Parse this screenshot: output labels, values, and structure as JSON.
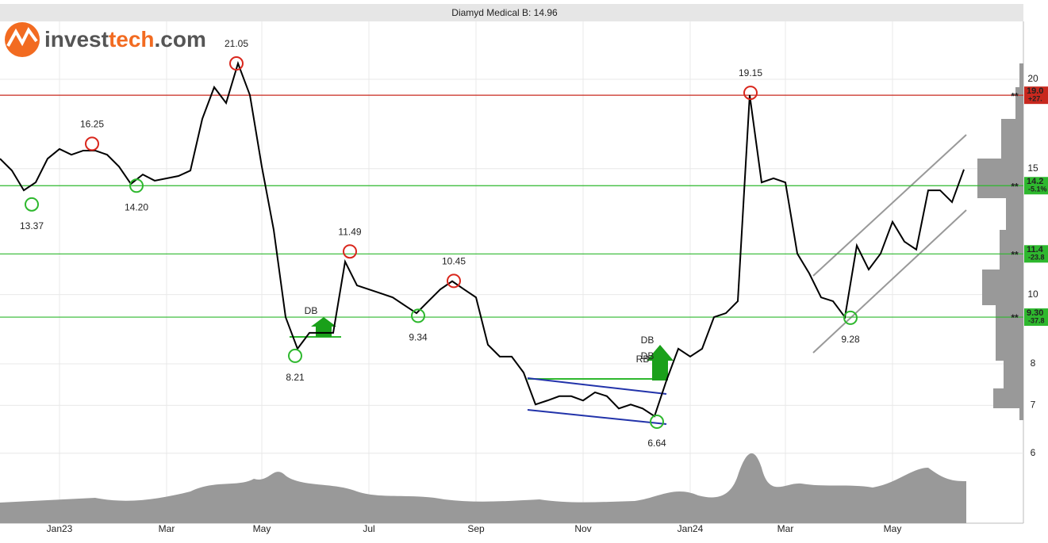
{
  "chart_data": {
    "type": "line",
    "title": "Diamyd Medical B: 14.96",
    "log_scale": true,
    "grid": true,
    "ylim": [
      4.79,
      24.1
    ],
    "yticks": [
      6,
      7,
      8,
      10,
      15,
      20
    ],
    "categories": [
      null,
      null,
      null,
      null,
      null,
      "Jan23",
      null,
      null,
      null,
      null,
      null,
      null,
      null,
      null,
      "Mar",
      null,
      null,
      null,
      null,
      null,
      null,
      null,
      "May",
      null,
      null,
      null,
      null,
      null,
      null,
      null,
      null,
      "Jul",
      null,
      null,
      null,
      null,
      null,
      null,
      null,
      null,
      "Sep",
      null,
      null,
      null,
      null,
      null,
      null,
      null,
      null,
      "Nov",
      null,
      null,
      null,
      null,
      null,
      null,
      null,
      null,
      "Jan24",
      null,
      null,
      null,
      null,
      null,
      null,
      null,
      "Mar",
      null,
      null,
      null,
      null,
      null,
      null,
      null,
      null,
      "May",
      null,
      null,
      null,
      null,
      null,
      null
    ],
    "color": "#000000",
    "values": [
      15.49,
      14.91,
      13.99,
      14.35,
      15.49,
      15.98,
      15.69,
      15.9,
      15.9,
      15.69,
      15.1,
      14.28,
      14.72,
      14.43,
      14.54,
      14.65,
      14.91,
      17.61,
      19.5,
      18.53,
      21.05,
      19.01,
      15.1,
      12.32,
      9.3,
      8.4,
      8.84,
      8.84,
      8.84,
      11.12,
      10.3,
      10.17,
      10.04,
      9.91,
      9.66,
      9.42,
      9.79,
      10.17,
      10.44,
      10.17,
      9.91,
      8.51,
      8.19,
      8.19,
      7.78,
      7.02,
      7.11,
      7.21,
      7.21,
      7.11,
      7.3,
      7.21,
      6.93,
      7.02,
      6.93,
      6.76,
      7.58,
      8.4,
      8.19,
      8.4,
      9.3,
      9.42,
      9.79,
      19.01,
      14.35,
      14.54,
      14.35,
      11.41,
      10.71,
      9.91,
      9.79,
      9.3,
      11.71,
      10.84,
      11.41,
      12.64,
      11.86,
      11.56,
      13.99,
      13.99,
      13.47,
      14.96
    ],
    "levels": [
      {
        "value": 19.0,
        "label": "19.0",
        "change": "+27.",
        "marker": "**",
        "color": "#c8281e"
      },
      {
        "value": 14.2,
        "label": "14.2",
        "change": "-5.1%",
        "marker": "**",
        "color": "#2eb82e"
      },
      {
        "value": 11.4,
        "label": "11.4",
        "change": "-23.8",
        "marker": "**",
        "color": "#2eb82e"
      },
      {
        "value": 9.3,
        "label": "9.30",
        "change": "-37.8",
        "marker": "**",
        "color": "#2eb82e"
      }
    ],
    "annotations": [
      {
        "value": 21.05,
        "label": "21.05",
        "kind": "top"
      },
      {
        "value": 16.25,
        "label": "16.25",
        "kind": "top"
      },
      {
        "value": 13.37,
        "label": "13.37",
        "kind": "bottom"
      },
      {
        "value": 14.2,
        "label": "14.20",
        "kind": "bottom"
      },
      {
        "value": 11.49,
        "label": "11.49",
        "kind": "top"
      },
      {
        "value": 8.21,
        "label": "8.21",
        "kind": "bottom"
      },
      {
        "value": 9.34,
        "label": "9.34",
        "kind": "bottom"
      },
      {
        "value": 10.45,
        "label": "10.45",
        "kind": "top"
      },
      {
        "value": 6.64,
        "label": "6.64",
        "kind": "bottom"
      },
      {
        "value": 19.15,
        "label": "19.15",
        "kind": "top"
      },
      {
        "value": 9.28,
        "label": "9.28",
        "kind": "bottom"
      }
    ],
    "patterns": [
      "DB",
      "DB",
      "DB",
      "RB"
    ],
    "logo": {
      "part1": "invest",
      "part2": "tech",
      "part3": ".com"
    }
  }
}
